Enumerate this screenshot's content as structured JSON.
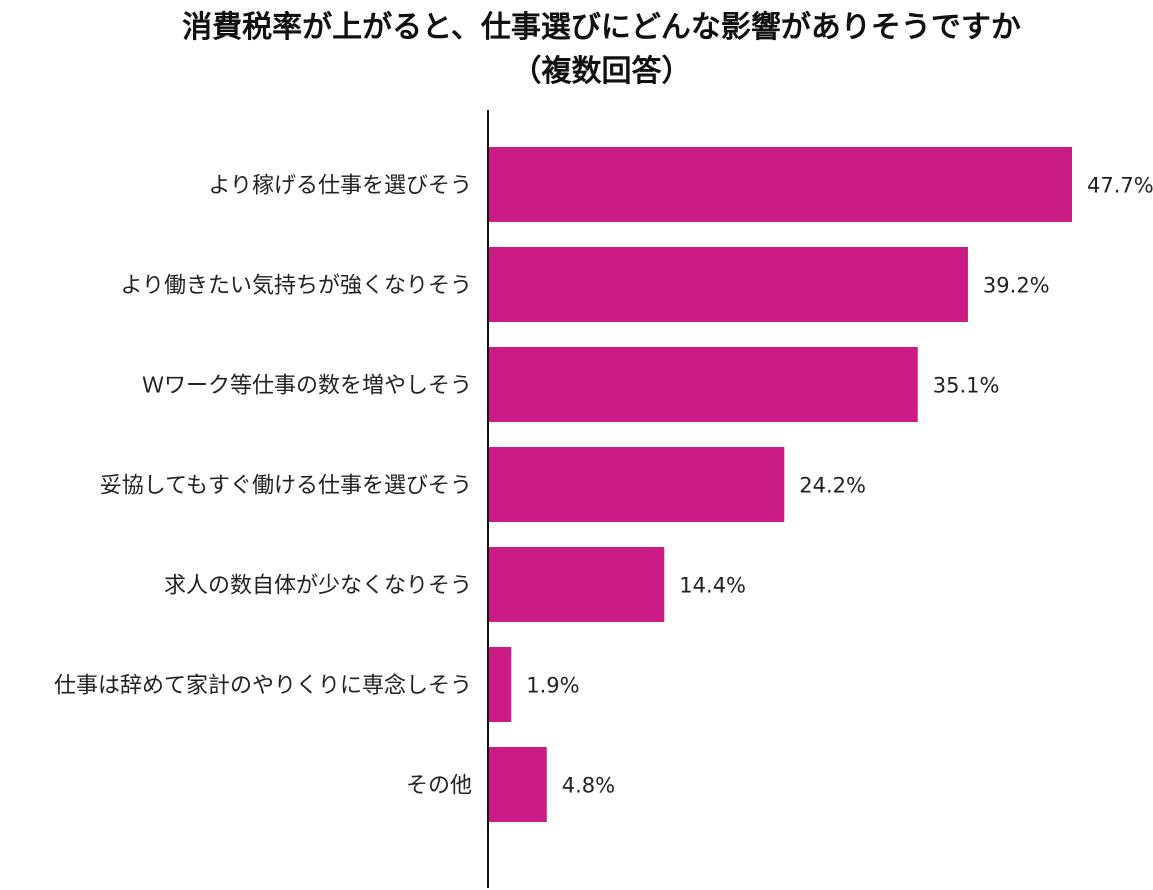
{
  "chart_data": {
    "type": "bar",
    "orientation": "horizontal",
    "title": "消費税率が上がると、仕事選びにどんな影響がありそうですか",
    "subtitle": "（複数回答）",
    "categories": [
      "より稼げる仕事を選びそう",
      "より働きたい気持ちが強くなりそう",
      "Ｗワーク等仕事の数を増やしそう",
      "妥協してもすぐ働ける仕事を選びそう",
      "求人の数自体が少なくなりそう",
      "仕事は辞めて家計のやりくりに専念しそう",
      "その他"
    ],
    "values": [
      47.7,
      39.2,
      35.1,
      24.2,
      14.4,
      1.9,
      4.8
    ],
    "value_labels": [
      "47.7%",
      "39.2%",
      "35.1%",
      "24.2%",
      "14.4%",
      "1.9%",
      "4.8%"
    ],
    "unit": "%",
    "xlim": [
      0,
      50
    ],
    "grid": false,
    "legend": "none",
    "bar_color": "#cb1b85",
    "axis_color": "#111111",
    "text_color": "#222222"
  }
}
